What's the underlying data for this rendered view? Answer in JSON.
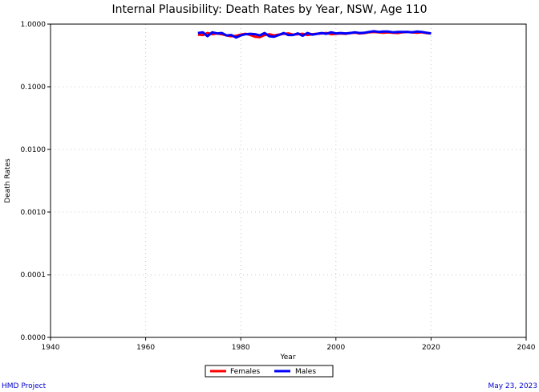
{
  "chart_data": {
    "type": "line",
    "title": "Internal Plausibility: Death Rates by Year, NSW, Age 110",
    "xlabel": "Year",
    "ylabel": "Death Rates",
    "xlim": [
      1940,
      2040
    ],
    "ylim": [
      1e-05,
      1.0
    ],
    "yscale": "log",
    "x_ticks": [
      1940,
      1960,
      1980,
      2000,
      2020,
      2040
    ],
    "x_tick_labels": [
      "1940",
      "1960",
      "1980",
      "2000",
      "2020",
      "2040"
    ],
    "y_ticks": [
      1e-05,
      0.0001,
      0.001,
      0.01,
      0.1,
      1.0
    ],
    "y_tick_labels": [
      "0.0000",
      "0.0001",
      "0.0010",
      "0.0100",
      "0.1000",
      "1.0000"
    ],
    "grid": true,
    "legend_position": "bottom-center",
    "x": [
      1971,
      1972,
      1973,
      1974,
      1975,
      1976,
      1977,
      1978,
      1979,
      1980,
      1981,
      1982,
      1983,
      1984,
      1985,
      1986,
      1987,
      1988,
      1989,
      1990,
      1991,
      1992,
      1993,
      1994,
      1995,
      1996,
      1997,
      1998,
      1999,
      2000,
      2001,
      2002,
      2003,
      2004,
      2005,
      2006,
      2007,
      2008,
      2009,
      2010,
      2011,
      2012,
      2013,
      2014,
      2015,
      2016,
      2017,
      2018,
      2019,
      2020
    ],
    "series": [
      {
        "name": "Females",
        "color": "#ff0000",
        "values": [
          0.68,
          0.67,
          0.72,
          0.69,
          0.71,
          0.69,
          0.66,
          0.64,
          0.65,
          0.68,
          0.7,
          0.67,
          0.63,
          0.62,
          0.67,
          0.69,
          0.66,
          0.68,
          0.7,
          0.71,
          0.68,
          0.69,
          0.7,
          0.67,
          0.69,
          0.7,
          0.71,
          0.72,
          0.69,
          0.7,
          0.71,
          0.7,
          0.72,
          0.73,
          0.71,
          0.72,
          0.74,
          0.75,
          0.74,
          0.73,
          0.74,
          0.73,
          0.72,
          0.74,
          0.75,
          0.74,
          0.73,
          0.74,
          0.72,
          0.71
        ]
      },
      {
        "name": "Males",
        "color": "#0000ff",
        "values": [
          0.72,
          0.74,
          0.64,
          0.74,
          0.71,
          0.72,
          0.66,
          0.67,
          0.61,
          0.66,
          0.69,
          0.7,
          0.69,
          0.66,
          0.72,
          0.64,
          0.63,
          0.67,
          0.72,
          0.67,
          0.67,
          0.71,
          0.65,
          0.72,
          0.68,
          0.7,
          0.72,
          0.7,
          0.74,
          0.71,
          0.72,
          0.71,
          0.72,
          0.74,
          0.72,
          0.73,
          0.75,
          0.77,
          0.75,
          0.76,
          0.76,
          0.74,
          0.75,
          0.75,
          0.75,
          0.74,
          0.76,
          0.75,
          0.73,
          0.71
        ]
      }
    ]
  },
  "footer": {
    "left": "HMD Project",
    "right": "May 23, 2023"
  }
}
